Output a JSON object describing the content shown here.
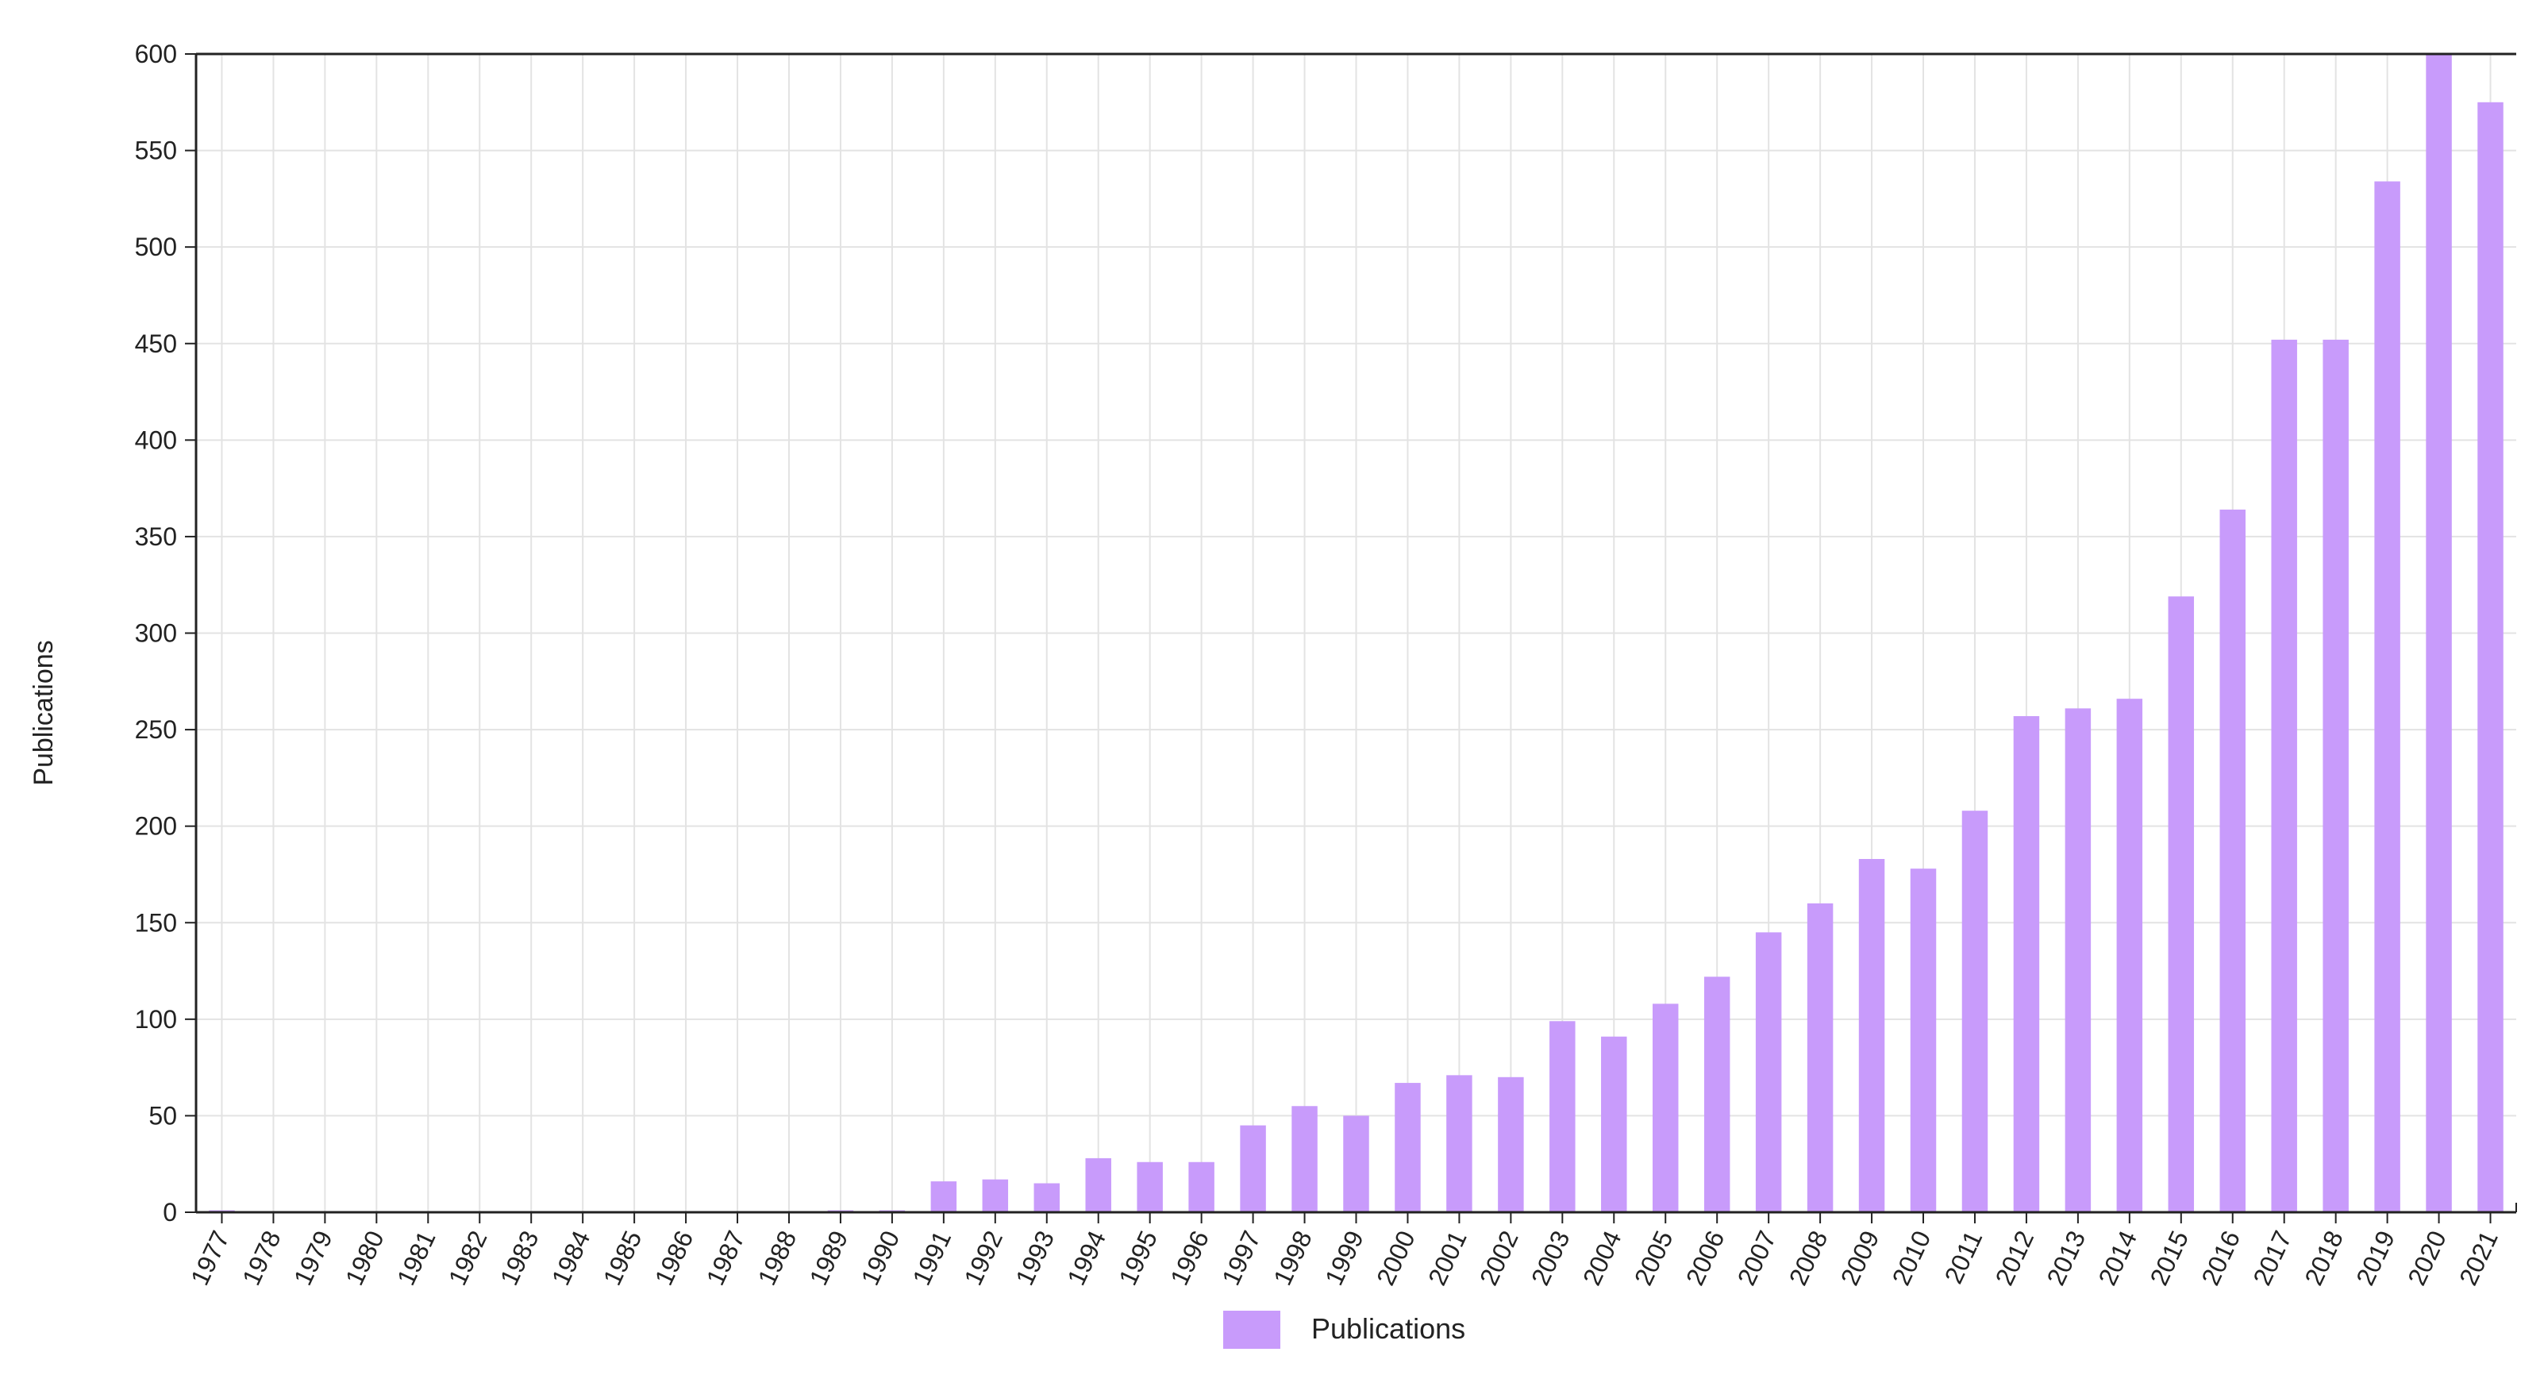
{
  "chart_data": {
    "type": "bar",
    "ylabel": "Publications",
    "xlabel": "",
    "ylim": [
      0,
      600
    ],
    "yticks": [
      0,
      50,
      100,
      150,
      200,
      250,
      300,
      350,
      400,
      450,
      500,
      550,
      600
    ],
    "grid": true,
    "legend_placement": "bottom-center",
    "categories": [
      "1977",
      "1978",
      "1979",
      "1980",
      "1981",
      "1982",
      "1983",
      "1984",
      "1985",
      "1986",
      "1987",
      "1988",
      "1989",
      "1990",
      "1991",
      "1992",
      "1993",
      "1994",
      "1995",
      "1996",
      "1997",
      "1998",
      "1999",
      "2000",
      "2001",
      "2002",
      "2003",
      "2004",
      "2005",
      "2006",
      "2007",
      "2008",
      "2009",
      "2010",
      "2011",
      "2012",
      "2013",
      "2014",
      "2015",
      "2016",
      "2017",
      "2018",
      "2019",
      "2020",
      "2021"
    ],
    "series": [
      {
        "name": "Publications",
        "color": "#c89bfb",
        "values": [
          1,
          0,
          0,
          0,
          0,
          0,
          0,
          0,
          0,
          0,
          0,
          0,
          1,
          1,
          16,
          17,
          15,
          28,
          26,
          26,
          45,
          55,
          50,
          67,
          71,
          70,
          99,
          91,
          108,
          122,
          145,
          160,
          183,
          178,
          208,
          257,
          261,
          266,
          319,
          364,
          452,
          452,
          534,
          603,
          575
        ]
      }
    ]
  }
}
